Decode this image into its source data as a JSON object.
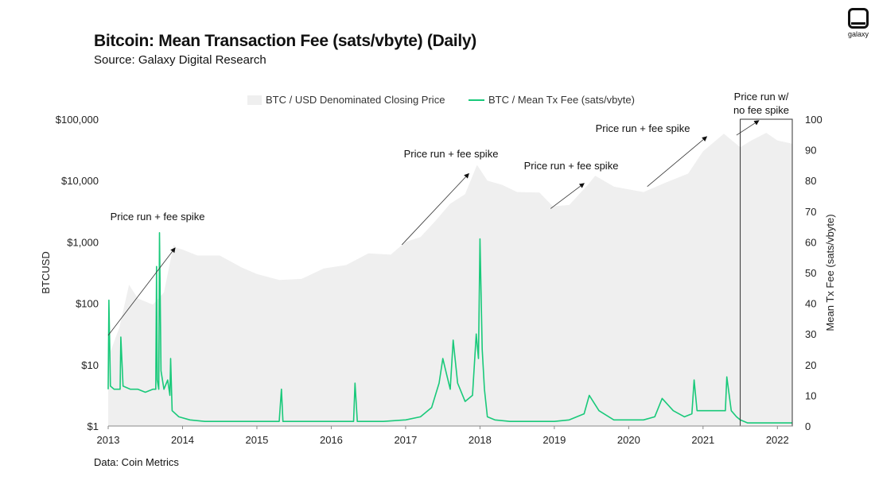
{
  "chart_data": {
    "type": "line",
    "title": "Bitcoin: Mean Transaction Fee (sats/vbyte) (Daily)",
    "subtitle": "Source: Galaxy Digital Research",
    "source_note": "Data: Coin Metrics",
    "xlabel": "",
    "ylabel_left": "BTCUSD",
    "ylabel_right": "Mean Tx Fee (sats/vbyte)",
    "x_ticks": [
      "2013",
      "2014",
      "2015",
      "2016",
      "2017",
      "2018",
      "2019",
      "2020",
      "2021",
      "2022"
    ],
    "y_left_ticks": [
      "$1",
      "$10",
      "$100",
      "$1,000",
      "$10,000",
      "$100,000"
    ],
    "y_left_log_range": [
      1,
      100000
    ],
    "y_right_ticks": [
      "0",
      "10",
      "20",
      "30",
      "40",
      "50",
      "60",
      "70",
      "80",
      "90",
      "100"
    ],
    "y_right_range": [
      0,
      100
    ],
    "x_range": [
      2013.0,
      2022.2
    ],
    "legend": {
      "price_label": "BTC / USD Denominated Closing Price",
      "fee_label": "BTC / Mean Tx Fee (sats/vbyte)",
      "position": "top"
    },
    "series": [
      {
        "name": "BTC / USD Denominated Closing Price",
        "style": "area",
        "color": "#efefef",
        "x": [
          2013.0,
          2013.15,
          2013.28,
          2013.4,
          2013.6,
          2013.75,
          2013.88,
          2013.92,
          2014.0,
          2014.2,
          2014.5,
          2014.8,
          2015.0,
          2015.3,
          2015.6,
          2015.9,
          2016.2,
          2016.5,
          2016.8,
          2017.0,
          2017.2,
          2017.4,
          2017.6,
          2017.8,
          2017.96,
          2018.1,
          2018.3,
          2018.5,
          2018.8,
          2018.98,
          2019.2,
          2019.45,
          2019.55,
          2019.8,
          2020.0,
          2020.2,
          2020.5,
          2020.8,
          2021.0,
          2021.28,
          2021.5,
          2021.65,
          2021.85,
          2022.0,
          2022.2
        ],
        "values": [
          13,
          40,
          200,
          120,
          95,
          150,
          900,
          800,
          750,
          600,
          600,
          380,
          300,
          240,
          250,
          370,
          420,
          650,
          620,
          1000,
          1200,
          2200,
          4200,
          6000,
          18000,
          10000,
          8500,
          6500,
          6400,
          3800,
          4000,
          8500,
          12000,
          8000,
          7200,
          6500,
          9300,
          13000,
          30000,
          58000,
          35000,
          45000,
          60000,
          45000,
          40000
        ]
      },
      {
        "name": "BTC / Mean Tx Fee (sats/vbyte)",
        "style": "line",
        "color": "#19c97a",
        "x": [
          2013.0,
          2013.01,
          2013.03,
          2013.08,
          2013.16,
          2013.17,
          2013.2,
          2013.3,
          2013.4,
          2013.5,
          2013.6,
          2013.64,
          2013.65,
          2013.66,
          2013.68,
          2013.69,
          2013.71,
          2013.75,
          2013.8,
          2013.83,
          2013.84,
          2013.86,
          2013.95,
          2014.1,
          2014.3,
          2014.6,
          2015.0,
          2015.3,
          2015.33,
          2015.35,
          2015.6,
          2016.0,
          2016.3,
          2016.32,
          2016.35,
          2016.7,
          2017.0,
          2017.2,
          2017.35,
          2017.4,
          2017.45,
          2017.5,
          2017.55,
          2017.6,
          2017.64,
          2017.7,
          2017.8,
          2017.9,
          2017.95,
          2017.98,
          2018.0,
          2018.03,
          2018.06,
          2018.1,
          2018.2,
          2018.4,
          2018.7,
          2019.0,
          2019.2,
          2019.4,
          2019.47,
          2019.6,
          2019.8,
          2020.0,
          2020.2,
          2020.35,
          2020.45,
          2020.6,
          2020.75,
          2020.85,
          2020.88,
          2020.92,
          2021.0,
          2021.1,
          2021.2,
          2021.3,
          2021.32,
          2021.38,
          2021.45,
          2021.5,
          2021.6,
          2021.8,
          2022.0,
          2022.2
        ],
        "values": [
          12,
          41,
          13,
          12,
          12,
          29,
          13,
          12,
          12,
          11,
          12,
          12,
          52,
          15,
          12,
          63,
          18,
          12,
          15,
          10,
          22,
          5,
          3,
          2,
          1.5,
          1.5,
          1.5,
          1.5,
          12,
          1.5,
          1.5,
          1.5,
          1.5,
          14,
          1.5,
          1.5,
          2,
          3,
          6,
          10,
          14,
          22,
          17,
          12,
          28,
          14,
          8,
          10,
          30,
          22,
          61,
          25,
          12,
          3,
          2,
          1.5,
          1.5,
          1.5,
          2,
          4,
          10,
          5,
          2,
          2,
          2,
          3,
          9,
          5,
          3,
          4,
          15,
          5,
          5,
          5,
          5,
          5,
          16,
          5,
          3,
          2,
          1,
          1,
          1,
          1
        ]
      }
    ],
    "annotations": [
      {
        "text": "Price run + fee spike",
        "from": [
          2013.0,
          30
        ],
        "to": [
          2013.9,
          800
        ]
      },
      {
        "text": "Price run + fee spike",
        "from": [
          2016.95,
          900
        ],
        "to": [
          2017.85,
          13000
        ]
      },
      {
        "text": "Price run + fee spike",
        "from": [
          2018.95,
          3500
        ],
        "to": [
          2019.4,
          9000
        ]
      },
      {
        "text": "Price run + fee spike",
        "from": [
          2020.25,
          8000
        ],
        "to": [
          2021.05,
          52000
        ]
      },
      {
        "text_line1": "Price run w/",
        "text_line2": "no fee spike",
        "from": [
          2021.45,
          55000
        ],
        "to": [
          2021.75,
          95000
        ]
      }
    ],
    "highlight_box": {
      "x_from": 2021.5,
      "x_to": 2022.2
    }
  },
  "logo": {
    "text": "galaxy"
  }
}
